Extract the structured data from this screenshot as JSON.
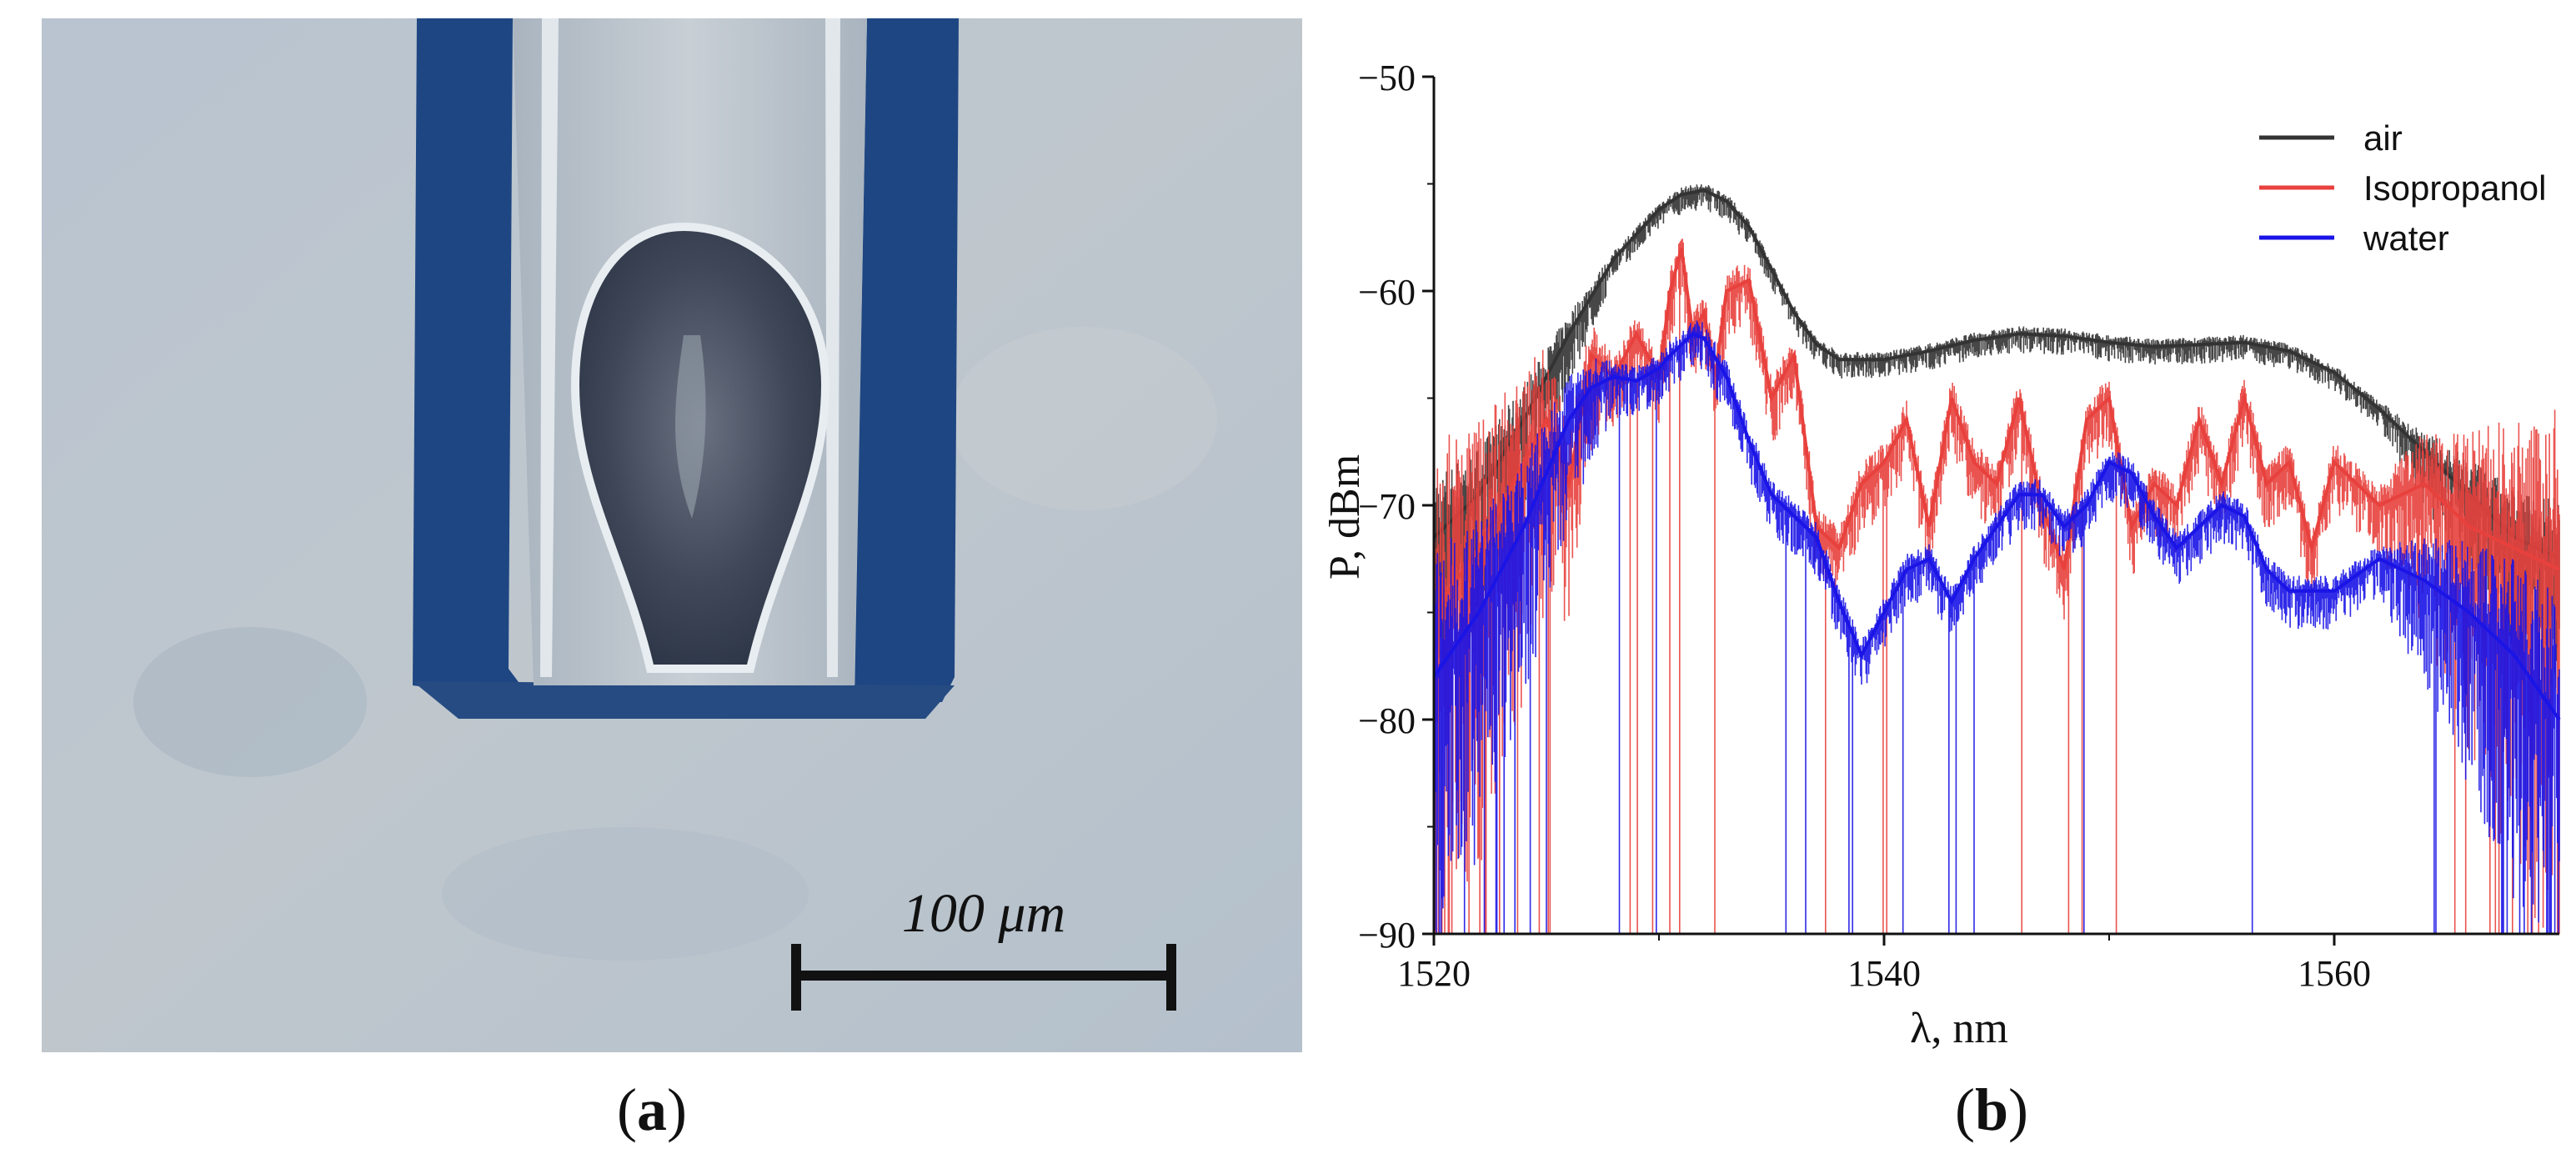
{
  "figure": {
    "panel_a": {
      "caption_label": "a",
      "scale_bar_label": "100 μm",
      "description_colors": {
        "background": "#b8c3cf",
        "capillary_wall": "#1b3f7a",
        "droplet": "#3c4454"
      }
    },
    "panel_b": {
      "caption_label": "b"
    }
  },
  "chart_data": {
    "type": "line",
    "title": "",
    "xlabel": "λ, nm",
    "ylabel": "P, dBm",
    "xlim": [
      1520,
      1570
    ],
    "ylim": [
      -90,
      -50
    ],
    "x_ticks": [
      1520,
      1540,
      1560
    ],
    "y_ticks": [
      -50,
      -60,
      -70,
      -80,
      -90
    ],
    "x_tick_labels": [
      "1520",
      "1540",
      "1560"
    ],
    "y_tick_labels": [
      "−50",
      "−60",
      "−70",
      "−80",
      "−90"
    ],
    "legend_position": "top-right",
    "series": [
      {
        "name": "air",
        "color": "#333333",
        "x": [
          1520,
          1522,
          1524,
          1526,
          1528,
          1530,
          1531,
          1532,
          1533,
          1534,
          1535,
          1536,
          1537,
          1538,
          1540,
          1542,
          1544,
          1546,
          1548,
          1550,
          1552,
          1554,
          1556,
          1558,
          1560,
          1562,
          1564,
          1566,
          1568,
          1570
        ],
        "values": [
          -71.5,
          -69.5,
          -66,
          -62,
          -58.5,
          -56.2,
          -55.5,
          -55.3,
          -55.8,
          -57,
          -59,
          -61,
          -62.5,
          -63.2,
          -63.2,
          -62.8,
          -62.3,
          -62,
          -62.1,
          -62.4,
          -62.6,
          -62.5,
          -62.4,
          -62.8,
          -63.8,
          -65.5,
          -67.5,
          -69.5,
          -71.5,
          -72.5
        ]
      },
      {
        "name": "Isopropanol",
        "color": "#e8413d",
        "x": [
          1520,
          1522,
          1524,
          1525,
          1526,
          1527,
          1528,
          1529,
          1530,
          1530.5,
          1531,
          1531.5,
          1532,
          1532.5,
          1533,
          1534,
          1535,
          1536,
          1537,
          1538,
          1539,
          1540,
          1541,
          1542,
          1543,
          1544,
          1545,
          1546,
          1547,
          1548,
          1549,
          1550,
          1551,
          1552,
          1553,
          1554,
          1555,
          1556,
          1557,
          1558,
          1559,
          1560,
          1562,
          1564,
          1566,
          1568,
          1570
        ],
        "values": [
          -75,
          -72,
          -68,
          -66,
          -69,
          -63,
          -64,
          -62,
          -64,
          -60,
          -58,
          -62,
          -61,
          -64,
          -60,
          -59.5,
          -65,
          -63,
          -71,
          -72,
          -69,
          -68,
          -66,
          -71,
          -65,
          -68,
          -69,
          -65,
          -70,
          -73,
          -66,
          -65,
          -71,
          -69,
          -70,
          -66,
          -69,
          -65,
          -69,
          -68,
          -72,
          -68,
          -70,
          -69,
          -71,
          -72,
          -73
        ]
      },
      {
        "name": "water",
        "color": "#1a14e6",
        "x": [
          1520,
          1522,
          1524,
          1526,
          1527,
          1528,
          1529,
          1530,
          1530.5,
          1531,
          1531.5,
          1532,
          1533,
          1534,
          1535,
          1536,
          1537,
          1538,
          1539,
          1540,
          1541,
          1542,
          1543,
          1544,
          1545,
          1546,
          1547,
          1548,
          1549,
          1550,
          1551,
          1552,
          1553,
          1554,
          1555,
          1556,
          1557,
          1558,
          1559,
          1560,
          1562,
          1564,
          1566,
          1568,
          1570
        ],
        "values": [
          -78,
          -75,
          -71,
          -66,
          -64.5,
          -64,
          -64.2,
          -63.6,
          -63,
          -62.5,
          -62,
          -62.2,
          -64,
          -67,
          -69.5,
          -70.5,
          -71.5,
          -74.5,
          -77,
          -75,
          -73,
          -72.5,
          -74.5,
          -72.5,
          -71,
          -69.5,
          -69.5,
          -71,
          -70,
          -68,
          -68.5,
          -70.5,
          -72,
          -71,
          -70,
          -70.5,
          -73,
          -74,
          -74,
          -74,
          -72.5,
          -73.5,
          -75,
          -77,
          -80
        ]
      }
    ]
  }
}
